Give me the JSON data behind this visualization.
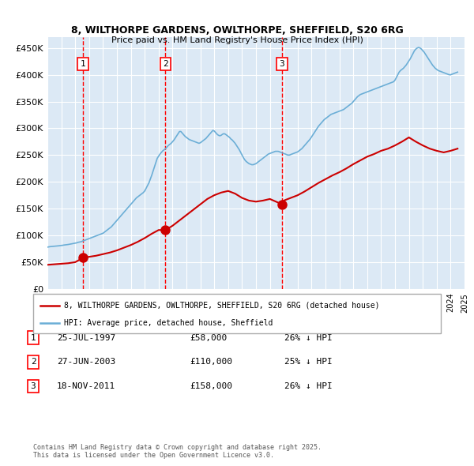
{
  "title_line1": "8, WILTHORPE GARDENS, OWLTHORPE, SHEFFIELD, S20 6RG",
  "title_line2": "Price paid vs. HM Land Registry's House Price Index (HPI)",
  "bg_color": "#dce9f5",
  "plot_bg_color": "#dce9f5",
  "grid_color": "#ffffff",
  "hpi_color": "#6baed6",
  "price_color": "#cc0000",
  "sale_marker_color": "#cc0000",
  "vline_color": "#ff0000",
  "ylabel": "",
  "xlabel": "",
  "ylim": [
    0,
    470000
  ],
  "yticks": [
    0,
    50000,
    100000,
    150000,
    200000,
    250000,
    300000,
    350000,
    400000,
    450000
  ],
  "ytick_labels": [
    "£0",
    "£50K",
    "£100K",
    "£150K",
    "£200K",
    "£250K",
    "£300K",
    "£350K",
    "£400K",
    "£450K"
  ],
  "sale_dates_num": [
    1997.56,
    2003.49,
    2011.88
  ],
  "sale_prices": [
    58000,
    110000,
    158000
  ],
  "sale_labels": [
    "1",
    "2",
    "3"
  ],
  "legend_price_label": "8, WILTHORPE GARDENS, OWLTHORPE, SHEFFIELD, S20 6RG (detached house)",
  "legend_hpi_label": "HPI: Average price, detached house, Sheffield",
  "table_rows": [
    [
      "1",
      "25-JUL-1997",
      "£58,000",
      "26% ↓ HPI"
    ],
    [
      "2",
      "27-JUN-2003",
      "£110,000",
      "25% ↓ HPI"
    ],
    [
      "3",
      "18-NOV-2011",
      "£158,000",
      "26% ↓ HPI"
    ]
  ],
  "footnote": "Contains HM Land Registry data © Crown copyright and database right 2025.\nThis data is licensed under the Open Government Licence v3.0.",
  "hpi_x": [
    1995.0,
    1995.1,
    1995.2,
    1995.3,
    1995.4,
    1995.5,
    1995.6,
    1995.7,
    1995.8,
    1995.9,
    1996.0,
    1996.1,
    1996.2,
    1996.3,
    1996.4,
    1996.5,
    1996.6,
    1996.7,
    1996.8,
    1996.9,
    1997.0,
    1997.1,
    1997.2,
    1997.3,
    1997.4,
    1997.5,
    1997.6,
    1997.7,
    1997.8,
    1997.9,
    1998.0,
    1998.1,
    1998.2,
    1998.3,
    1998.4,
    1998.5,
    1998.6,
    1998.7,
    1998.8,
    1998.9,
    1999.0,
    1999.1,
    1999.2,
    1999.3,
    1999.4,
    1999.5,
    1999.6,
    1999.7,
    1999.8,
    1999.9,
    2000.0,
    2000.1,
    2000.2,
    2000.3,
    2000.4,
    2000.5,
    2000.6,
    2000.7,
    2000.8,
    2000.9,
    2001.0,
    2001.1,
    2001.2,
    2001.3,
    2001.4,
    2001.5,
    2001.6,
    2001.7,
    2001.8,
    2001.9,
    2002.0,
    2002.1,
    2002.2,
    2002.3,
    2002.4,
    2002.5,
    2002.6,
    2002.7,
    2002.8,
    2002.9,
    2003.0,
    2003.1,
    2003.2,
    2003.3,
    2003.4,
    2003.5,
    2003.6,
    2003.7,
    2003.8,
    2003.9,
    2004.0,
    2004.1,
    2004.2,
    2004.3,
    2004.4,
    2004.5,
    2004.6,
    2004.7,
    2004.8,
    2004.9,
    2005.0,
    2005.1,
    2005.2,
    2005.3,
    2005.4,
    2005.5,
    2005.6,
    2005.7,
    2005.8,
    2005.9,
    2006.0,
    2006.1,
    2006.2,
    2006.3,
    2006.4,
    2006.5,
    2006.6,
    2006.7,
    2006.8,
    2006.9,
    2007.0,
    2007.1,
    2007.2,
    2007.3,
    2007.4,
    2007.5,
    2007.6,
    2007.7,
    2007.8,
    2007.9,
    2008.0,
    2008.1,
    2008.2,
    2008.3,
    2008.4,
    2008.5,
    2008.6,
    2008.7,
    2008.8,
    2008.9,
    2009.0,
    2009.1,
    2009.2,
    2009.3,
    2009.4,
    2009.5,
    2009.6,
    2009.7,
    2009.8,
    2009.9,
    2010.0,
    2010.1,
    2010.2,
    2010.3,
    2010.4,
    2010.5,
    2010.6,
    2010.7,
    2010.8,
    2010.9,
    2011.0,
    2011.1,
    2011.2,
    2011.3,
    2011.4,
    2011.5,
    2011.6,
    2011.7,
    2011.8,
    2011.9,
    2012.0,
    2012.1,
    2012.2,
    2012.3,
    2012.4,
    2012.5,
    2012.6,
    2012.7,
    2012.8,
    2012.9,
    2013.0,
    2013.1,
    2013.2,
    2013.3,
    2013.4,
    2013.5,
    2013.6,
    2013.7,
    2013.8,
    2013.9,
    2014.0,
    2014.1,
    2014.2,
    2014.3,
    2014.4,
    2014.5,
    2014.6,
    2014.7,
    2014.8,
    2014.9,
    2015.0,
    2015.1,
    2015.2,
    2015.3,
    2015.4,
    2015.5,
    2015.6,
    2015.7,
    2015.8,
    2015.9,
    2016.0,
    2016.1,
    2016.2,
    2016.3,
    2016.4,
    2016.5,
    2016.6,
    2016.7,
    2016.8,
    2016.9,
    2017.0,
    2017.1,
    2017.2,
    2017.3,
    2017.4,
    2017.5,
    2017.6,
    2017.7,
    2017.8,
    2017.9,
    2018.0,
    2018.1,
    2018.2,
    2018.3,
    2018.4,
    2018.5,
    2018.6,
    2018.7,
    2018.8,
    2018.9,
    2019.0,
    2019.1,
    2019.2,
    2019.3,
    2019.4,
    2019.5,
    2019.6,
    2019.7,
    2019.8,
    2019.9,
    2020.0,
    2020.1,
    2020.2,
    2020.3,
    2020.4,
    2020.5,
    2020.6,
    2020.7,
    2020.8,
    2020.9,
    2021.0,
    2021.1,
    2021.2,
    2021.3,
    2021.4,
    2021.5,
    2021.6,
    2021.7,
    2021.8,
    2021.9,
    2022.0,
    2022.1,
    2022.2,
    2022.3,
    2022.4,
    2022.5,
    2022.6,
    2022.7,
    2022.8,
    2022.9,
    2023.0,
    2023.1,
    2023.2,
    2023.3,
    2023.4,
    2023.5,
    2023.6,
    2023.7,
    2023.8,
    2023.9,
    2024.0,
    2024.1,
    2024.2,
    2024.3,
    2024.4,
    2024.5
  ],
  "hpi_y": [
    78000,
    78500,
    79000,
    79200,
    79500,
    79800,
    80000,
    80200,
    80500,
    80800,
    81000,
    81500,
    82000,
    82300,
    82700,
    83000,
    83500,
    84000,
    84500,
    85000,
    85500,
    86000,
    87000,
    87500,
    88000,
    89000,
    90000,
    91000,
    92000,
    93000,
    94000,
    95000,
    96000,
    97000,
    98000,
    99000,
    100000,
    101000,
    102000,
    103000,
    104000,
    106000,
    108000,
    110000,
    112000,
    114000,
    116000,
    119000,
    122000,
    125000,
    128000,
    131000,
    134000,
    137000,
    140000,
    143000,
    146000,
    149000,
    152000,
    155000,
    158000,
    161000,
    164000,
    167000,
    170000,
    172000,
    174000,
    176000,
    178000,
    180000,
    183000,
    188000,
    193000,
    198000,
    205000,
    212000,
    220000,
    228000,
    236000,
    244000,
    248000,
    252000,
    255000,
    258000,
    260000,
    262000,
    265000,
    268000,
    270000,
    272000,
    275000,
    278000,
    282000,
    286000,
    290000,
    294000,
    294000,
    291000,
    288000,
    285000,
    283000,
    281000,
    279000,
    278000,
    277000,
    276000,
    275000,
    274000,
    273000,
    272000,
    273000,
    275000,
    277000,
    279000,
    281000,
    284000,
    287000,
    290000,
    293000,
    296000,
    295000,
    292000,
    289000,
    287000,
    286000,
    287000,
    289000,
    290000,
    289000,
    287000,
    285000,
    283000,
    280000,
    278000,
    275000,
    272000,
    268000,
    264000,
    260000,
    255000,
    250000,
    245000,
    241000,
    238000,
    236000,
    234000,
    233000,
    232000,
    232000,
    233000,
    234000,
    236000,
    238000,
    240000,
    242000,
    244000,
    246000,
    248000,
    250000,
    252000,
    253000,
    254000,
    255000,
    256000,
    257000,
    257000,
    257000,
    256000,
    255000,
    254000,
    253000,
    252000,
    251000,
    250000,
    250000,
    251000,
    252000,
    253000,
    254000,
    255000,
    256000,
    258000,
    260000,
    262000,
    265000,
    268000,
    271000,
    274000,
    277000,
    280000,
    284000,
    288000,
    292000,
    296000,
    300000,
    304000,
    307000,
    310000,
    313000,
    316000,
    318000,
    320000,
    322000,
    324000,
    326000,
    327000,
    328000,
    329000,
    330000,
    331000,
    332000,
    333000,
    334000,
    335000,
    337000,
    339000,
    341000,
    343000,
    345000,
    347000,
    350000,
    353000,
    356000,
    359000,
    361000,
    363000,
    364000,
    365000,
    366000,
    367000,
    368000,
    369000,
    370000,
    371000,
    372000,
    373000,
    374000,
    375000,
    376000,
    377000,
    378000,
    379000,
    380000,
    381000,
    382000,
    383000,
    384000,
    385000,
    386000,
    387000,
    390000,
    395000,
    400000,
    405000,
    408000,
    410000,
    412000,
    415000,
    418000,
    422000,
    426000,
    430000,
    435000,
    440000,
    445000,
    448000,
    450000,
    451000,
    450000,
    448000,
    445000,
    442000,
    438000,
    434000,
    430000,
    426000,
    422000,
    418000,
    415000,
    412000,
    410000,
    408000,
    407000,
    406000,
    405000,
    404000,
    403000,
    402000,
    401000,
    400000,
    400000,
    401000,
    402000,
    403000,
    404000,
    405000
  ],
  "price_x": [
    1995.0,
    1995.5,
    1996.0,
    1996.5,
    1997.0,
    1997.56,
    1998.0,
    1998.5,
    1999.0,
    1999.5,
    2000.0,
    2000.5,
    2001.0,
    2001.5,
    2002.0,
    2002.5,
    2003.0,
    2003.49,
    2004.0,
    2004.5,
    2005.0,
    2005.5,
    2006.0,
    2006.5,
    2007.0,
    2007.5,
    2008.0,
    2008.5,
    2009.0,
    2009.5,
    2010.0,
    2010.5,
    2011.0,
    2011.88,
    2012.0,
    2012.5,
    2013.0,
    2013.5,
    2014.0,
    2014.5,
    2015.0,
    2015.5,
    2016.0,
    2016.5,
    2017.0,
    2017.5,
    2018.0,
    2018.5,
    2019.0,
    2019.5,
    2020.0,
    2020.5,
    2021.0,
    2021.5,
    2022.0,
    2022.5,
    2023.0,
    2023.5,
    2024.0,
    2024.5
  ],
  "price_y": [
    45000,
    46000,
    47000,
    48000,
    50000,
    58000,
    60000,
    62000,
    65000,
    68000,
    72000,
    77000,
    82000,
    88000,
    95000,
    103000,
    110000,
    110000,
    118000,
    128000,
    138000,
    148000,
    158000,
    168000,
    175000,
    180000,
    183000,
    178000,
    170000,
    165000,
    163000,
    165000,
    168000,
    158000,
    165000,
    170000,
    175000,
    182000,
    190000,
    198000,
    205000,
    212000,
    218000,
    225000,
    233000,
    240000,
    247000,
    252000,
    258000,
    262000,
    268000,
    275000,
    283000,
    275000,
    268000,
    262000,
    258000,
    255000,
    258000,
    262000
  ]
}
